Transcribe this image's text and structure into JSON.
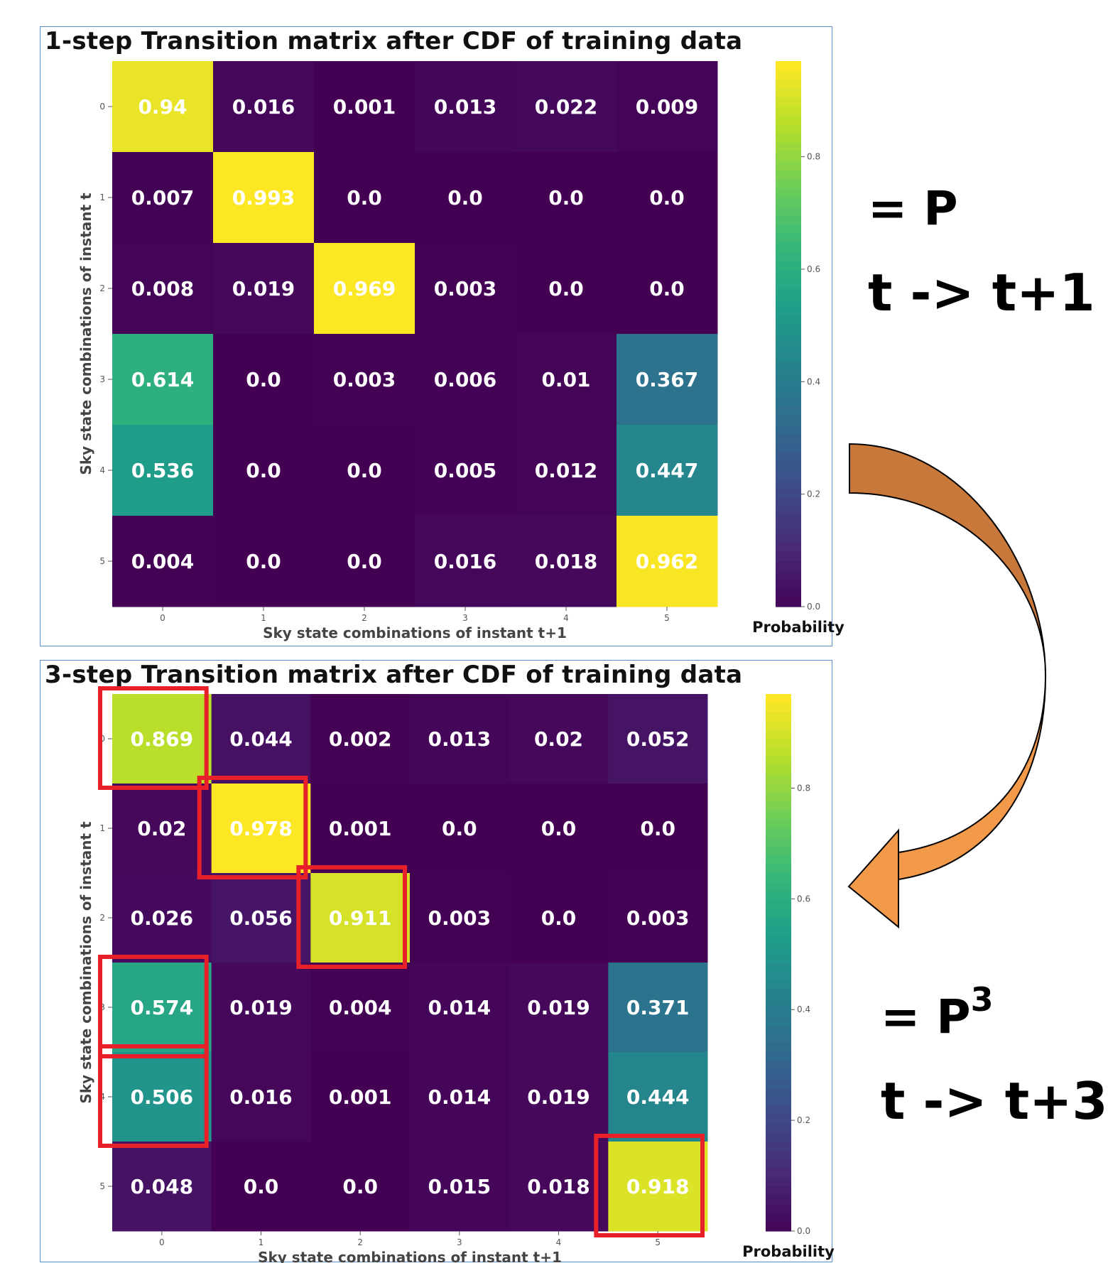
{
  "chart_data": [
    {
      "type": "heatmap",
      "title": "1-step Transition matrix after CDF of training data",
      "xlabel": "Sky state combinations of instant t+1",
      "ylabel": "Sky state combinations of instant t",
      "x_ticks": [
        "0",
        "1",
        "2",
        "3",
        "4",
        "5"
      ],
      "y_ticks": [
        "0",
        "1",
        "2",
        "3",
        "4",
        "5"
      ],
      "values": [
        [
          0.94,
          0.016,
          0.001,
          0.013,
          0.022,
          0.009
        ],
        [
          0.007,
          0.993,
          0.0,
          0.0,
          0.0,
          0.0
        ],
        [
          0.008,
          0.019,
          0.969,
          0.003,
          0.0,
          0.0
        ],
        [
          0.614,
          0.0,
          0.003,
          0.006,
          0.01,
          0.367
        ],
        [
          0.536,
          0.0,
          0.0,
          0.005,
          0.012,
          0.447
        ],
        [
          0.004,
          0.0,
          0.0,
          0.016,
          0.018,
          0.962
        ]
      ],
      "labels": [
        [
          "0.94",
          "0.016",
          "0.001",
          "0.013",
          "0.022",
          "0.009"
        ],
        [
          "0.007",
          "0.993",
          "0.0",
          "0.0",
          "0.0",
          "0.0"
        ],
        [
          "0.008",
          "0.019",
          "0.969",
          "0.003",
          "0.0",
          "0.0"
        ],
        [
          "0.614",
          "0.0",
          "0.003",
          "0.006",
          "0.01",
          "0.367"
        ],
        [
          "0.536",
          "0.0",
          "0.0",
          "0.005",
          "0.012",
          "0.447"
        ],
        [
          "0.004",
          "0.0",
          "0.0",
          "0.016",
          "0.018",
          "0.962"
        ]
      ],
      "colorbar": {
        "label": "Probability",
        "ticks": [
          "0.0",
          "0.2",
          "0.4",
          "0.6",
          "0.8"
        ],
        "colormap": "viridis",
        "range": [
          0,
          1
        ]
      },
      "highlighted_cells": []
    },
    {
      "type": "heatmap",
      "title": "3-step Transition matrix after CDF of training data",
      "xlabel": "Sky state combinations of instant t+1",
      "ylabel": "Sky state combinations of instant t",
      "x_ticks": [
        "0",
        "1",
        "2",
        "3",
        "4",
        "5"
      ],
      "y_ticks": [
        "0",
        "1",
        "2",
        "3",
        "4",
        "5"
      ],
      "values": [
        [
          0.869,
          0.044,
          0.002,
          0.013,
          0.02,
          0.052
        ],
        [
          0.02,
          0.978,
          0.001,
          0.0,
          0.0,
          0.0
        ],
        [
          0.026,
          0.056,
          0.911,
          0.003,
          0.0,
          0.003
        ],
        [
          0.574,
          0.019,
          0.004,
          0.014,
          0.019,
          0.371
        ],
        [
          0.506,
          0.016,
          0.001,
          0.014,
          0.019,
          0.444
        ],
        [
          0.048,
          0.0,
          0.0,
          0.015,
          0.018,
          0.918
        ]
      ],
      "labels": [
        [
          "0.869",
          "0.044",
          "0.002",
          "0.013",
          "0.02",
          "0.052"
        ],
        [
          "0.02",
          "0.978",
          "0.001",
          "0.0",
          "0.0",
          "0.0"
        ],
        [
          "0.026",
          "0.056",
          "0.911",
          "0.003",
          "0.0",
          "0.003"
        ],
        [
          "0.574",
          "0.019",
          "0.004",
          "0.014",
          "0.019",
          "0.371"
        ],
        [
          "0.506",
          "0.016",
          "0.001",
          "0.014",
          "0.019",
          "0.444"
        ],
        [
          "0.048",
          "0.0",
          "0.0",
          "0.015",
          "0.018",
          "0.918"
        ]
      ],
      "colorbar": {
        "label": "Probability",
        "ticks": [
          "0.0",
          "0.2",
          "0.4",
          "0.6",
          "0.8"
        ],
        "colormap": "viridis",
        "range": [
          0,
          1
        ]
      },
      "highlighted_cells": [
        [
          0,
          0
        ],
        [
          1,
          1
        ],
        [
          2,
          2
        ],
        [
          3,
          0
        ],
        [
          4,
          0
        ],
        [
          5,
          5
        ]
      ],
      "highlight_color": "#e8202a"
    }
  ],
  "annotations": {
    "p_label": "= P",
    "p_step": "t -> t+1",
    "p3_base": "= P",
    "p3_exp": "3",
    "p3_step": "t -> t+3",
    "arrow_fill_top": "#c8783a",
    "arrow_fill_bottom": "#f2994a"
  }
}
